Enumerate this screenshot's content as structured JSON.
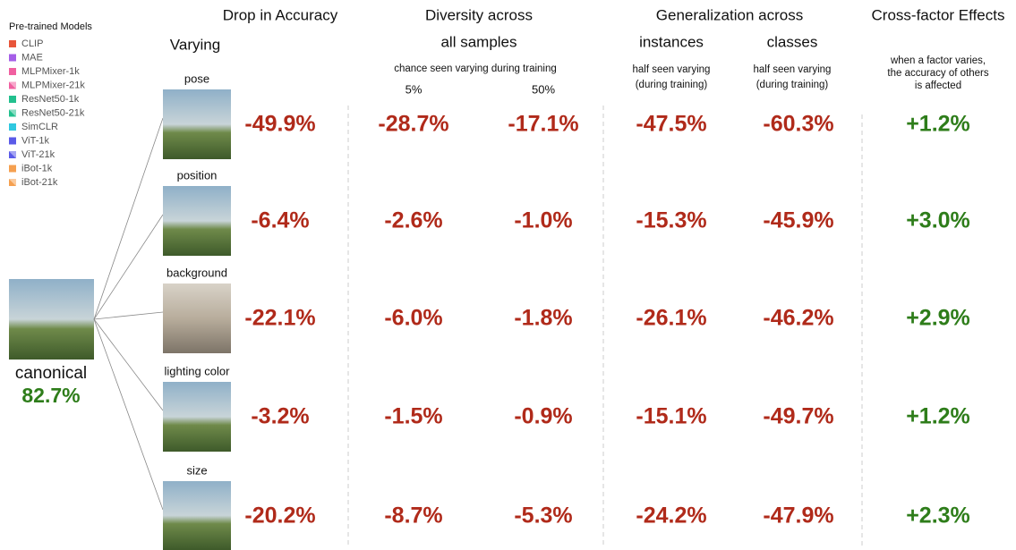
{
  "legend": {
    "title": "Pre-trained Models",
    "items": [
      {
        "name": "CLIP",
        "color": "#e8553a",
        "hatched": false
      },
      {
        "name": "MAE",
        "color": "#a55ee8",
        "hatched": false
      },
      {
        "name": "MLPMixer-1k",
        "color": "#f05fa0",
        "hatched": false
      },
      {
        "name": "MLPMixer-21k",
        "color": "#f05fa0",
        "hatched": true
      },
      {
        "name": "ResNet50-1k",
        "color": "#22c08e",
        "hatched": false
      },
      {
        "name": "ResNet50-21k",
        "color": "#22c08e",
        "hatched": true
      },
      {
        "name": "SimCLR",
        "color": "#30c8e0",
        "hatched": false
      },
      {
        "name": "ViT-1k",
        "color": "#5a5ae8",
        "hatched": false
      },
      {
        "name": "ViT-21k",
        "color": "#5a5ae8",
        "hatched": true
      },
      {
        "name": "iBot-1k",
        "color": "#f5a050",
        "hatched": false
      },
      {
        "name": "iBot-21k",
        "color": "#f5a050",
        "hatched": true
      }
    ]
  },
  "headers": {
    "drop": "Drop in Accuracy",
    "varying": "Varying",
    "diversity": {
      "title": "Diversity across",
      "subtitle": "all samples",
      "note": "chance seen varying during training",
      "columns": [
        "5%",
        "50%"
      ]
    },
    "generalization": {
      "title": "Generalization across",
      "columns": [
        "instances",
        "classes"
      ],
      "notes": [
        [
          "half seen varying",
          "(during training)"
        ],
        [
          "half seen varying",
          "(during training)"
        ]
      ]
    },
    "cross_factor": {
      "title": "Cross-factor Effects",
      "note": [
        "when a factor varies,",
        "the accuracy of others",
        "is affected"
      ]
    }
  },
  "canonical": {
    "label": "canonical",
    "accuracy": "82.7%"
  },
  "rows": [
    {
      "factor": "pose",
      "values": [
        "-49.9%",
        "-28.7%",
        "-17.1%",
        "-47.5%",
        "-60.3%",
        "+1.2%"
      ]
    },
    {
      "factor": "position",
      "values": [
        "-6.4%",
        "-2.6%",
        "-1.0%",
        "-15.3%",
        "-45.9%",
        "+3.0%"
      ]
    },
    {
      "factor": "background",
      "values": [
        "-22.1%",
        "-6.0%",
        "-1.8%",
        "-26.1%",
        "-46.2%",
        "+2.9%"
      ]
    },
    {
      "factor": "lighting color",
      "values": [
        "-3.2%",
        "-1.5%",
        "-0.9%",
        "-15.1%",
        "-49.7%",
        "+1.2%"
      ]
    },
    {
      "factor": "size",
      "values": [
        "-20.2%",
        "-8.7%",
        "-5.3%",
        "-24.2%",
        "-47.9%",
        "+2.3%"
      ]
    }
  ]
}
